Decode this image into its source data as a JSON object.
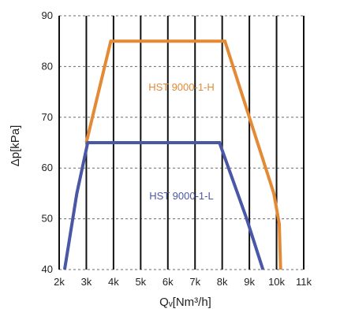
{
  "chart_data": {
    "type": "line",
    "xlabel": "Qᵥ[Nm³/h]",
    "ylabel": "Δp[kPa]",
    "xlim": [
      2000,
      11000
    ],
    "ylim": [
      40,
      90
    ],
    "x_ticks": [
      {
        "value": 2000,
        "label": "2k"
      },
      {
        "value": 3000,
        "label": "3k"
      },
      {
        "value": 4000,
        "label": "4k"
      },
      {
        "value": 5000,
        "label": "5k"
      },
      {
        "value": 6000,
        "label": "6k"
      },
      {
        "value": 7000,
        "label": "7k"
      },
      {
        "value": 8000,
        "label": "8k"
      },
      {
        "value": 9000,
        "label": "9k"
      },
      {
        "value": 10000,
        "label": "10k"
      },
      {
        "value": 11000,
        "label": "11k"
      }
    ],
    "y_ticks": [
      {
        "value": 40,
        "label": "40"
      },
      {
        "value": 50,
        "label": "50"
      },
      {
        "value": 60,
        "label": "60"
      },
      {
        "value": 70,
        "label": "70"
      },
      {
        "value": 80,
        "label": "80"
      },
      {
        "value": 90,
        "label": "90"
      }
    ],
    "grid": {
      "vertical": "solid",
      "horizontal": "dashed"
    },
    "series": [
      {
        "name": "HST 9000-1-H",
        "color": "#e58a34",
        "x": [
          3000,
          3900,
          8100,
          9000,
          9900,
          10100,
          10150
        ],
        "y": [
          65,
          85,
          85,
          70,
          55,
          49,
          40
        ]
      },
      {
        "name": "HST 9000-1-L",
        "color": "#4a56a6",
        "x": [
          2200,
          2650,
          3050,
          7900,
          8900,
          9500
        ],
        "y": [
          40,
          55,
          65,
          65,
          50,
          40
        ]
      }
    ]
  }
}
